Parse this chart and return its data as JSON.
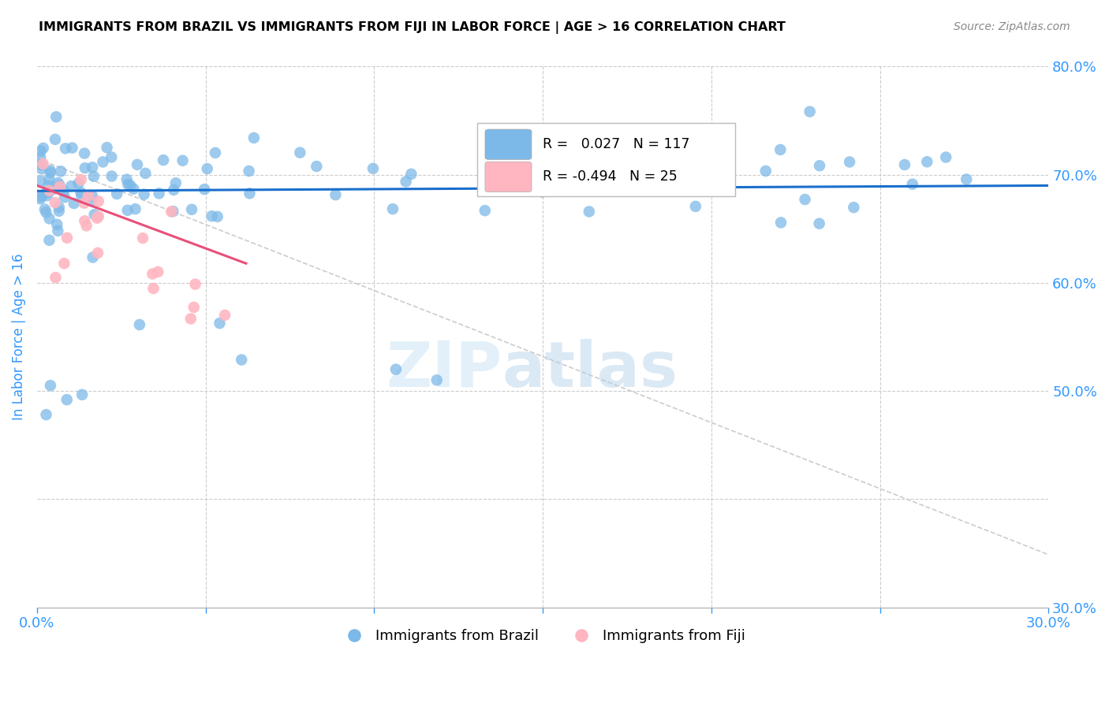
{
  "title": "IMMIGRANTS FROM BRAZIL VS IMMIGRANTS FROM FIJI IN LABOR FORCE | AGE > 16 CORRELATION CHART",
  "source": "Source: ZipAtlas.com",
  "ylabel": "In Labor Force | Age > 16",
  "xlim": [
    0.0,
    0.3
  ],
  "ylim": [
    0.3,
    0.8
  ],
  "brazil_R": 0.027,
  "brazil_N": 117,
  "fiji_R": -0.494,
  "fiji_N": 25,
  "brazil_color": "#7cb9e8",
  "fiji_color": "#ffb6c1",
  "brazil_line_color": "#1a6fcc",
  "fiji_line_color": "#e8507a",
  "watermark_zip": "ZIP",
  "watermark_atlas": "atlas",
  "background_color": "#ffffff",
  "grid_color": "#cccccc",
  "title_color": "#000000",
  "tick_color": "#3399ff",
  "diag_line_color": "#cccccc"
}
